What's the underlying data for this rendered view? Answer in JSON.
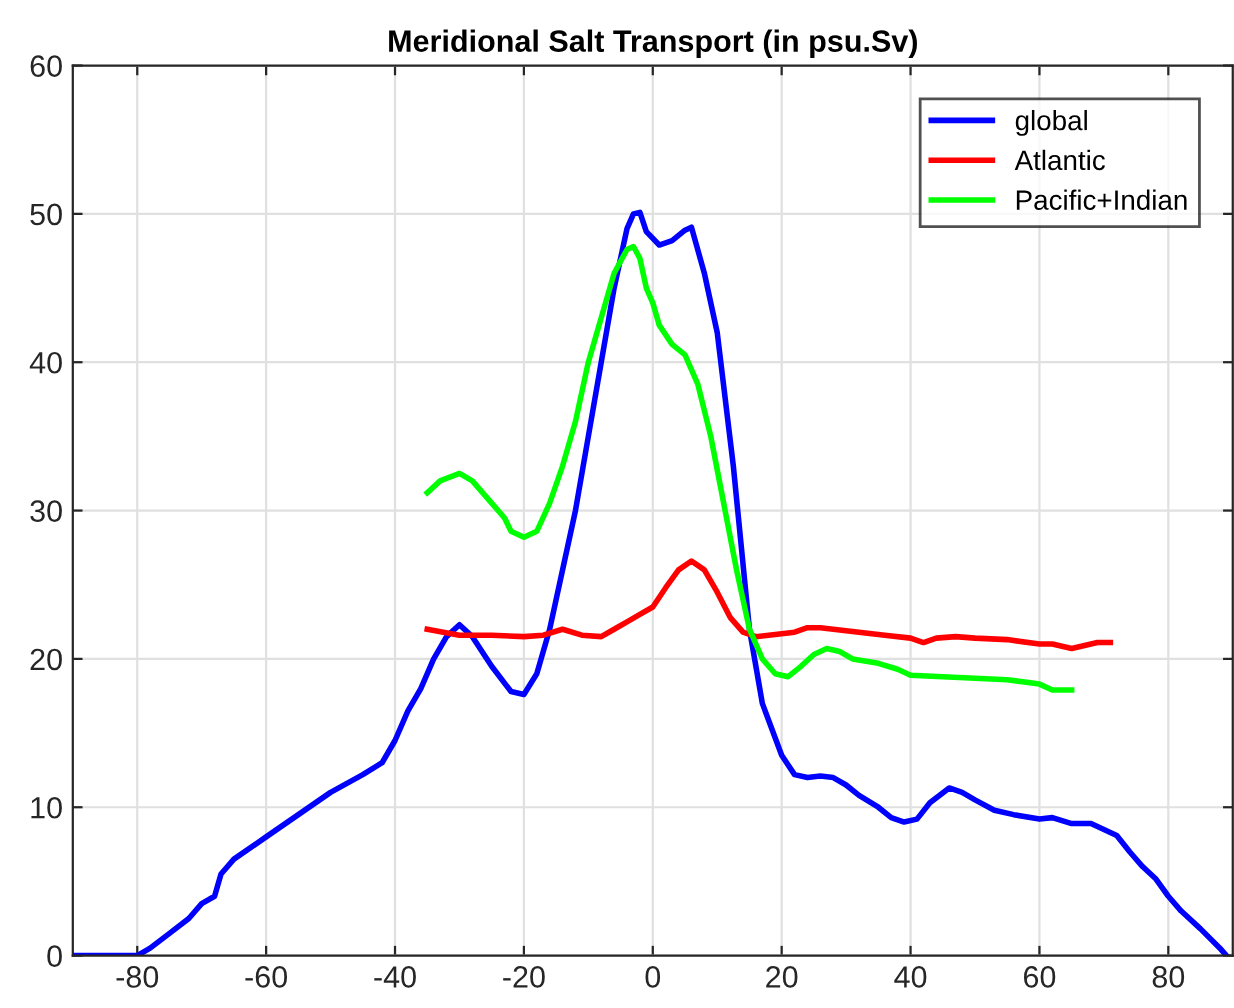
{
  "chart_data": {
    "type": "line",
    "title": "Meridional Salt Transport (in psu.Sv)",
    "xlim": [
      -90,
      90
    ],
    "ylim": [
      0,
      60
    ],
    "xticks": [
      -80,
      -60,
      -40,
      -20,
      0,
      20,
      40,
      60,
      80
    ],
    "yticks": [
      0,
      10,
      20,
      30,
      40,
      50,
      60
    ],
    "grid": true,
    "legend": "top right",
    "line_style": "solid",
    "marker": "none",
    "series": [
      {
        "name": "global",
        "color": "#0000ff",
        "x": [
          -90,
          -80,
          -78,
          -75,
          -72,
          -70,
          -68,
          -67,
          -65,
          -60,
          -55,
          -50,
          -45,
          -42,
          -40,
          -38,
          -36,
          -34,
          -32,
          -30,
          -28,
          -25,
          -22,
          -20,
          -18,
          -16,
          -14,
          -12,
          -10,
          -8,
          -6,
          -4,
          -3,
          -2,
          -1,
          1,
          3,
          5,
          6,
          8,
          10,
          12.5,
          15,
          17,
          20,
          22,
          24,
          26,
          28,
          30,
          32,
          35,
          37,
          39,
          41,
          43,
          46,
          48,
          50,
          53,
          56,
          60,
          62,
          65,
          68,
          70,
          72,
          74,
          76,
          78,
          80,
          82,
          85,
          88,
          89
        ],
        "values": [
          0,
          0,
          0.5,
          1.5,
          2.5,
          3.5,
          4,
          5.5,
          6.5,
          8,
          9.5,
          11,
          12.2,
          13,
          14.5,
          16.5,
          18,
          20,
          21.5,
          22.3,
          21.5,
          19.5,
          17.8,
          17.6,
          19,
          22,
          26,
          30,
          35,
          40,
          45,
          49,
          50,
          50.1,
          48.8,
          47.9,
          48.2,
          48.9,
          49.1,
          46,
          42,
          33,
          22,
          17,
          13.5,
          12.2,
          12,
          12.1,
          12,
          11.5,
          10.8,
          10,
          9.3,
          9,
          9.2,
          10.3,
          11.3,
          11,
          10.5,
          9.8,
          9.5,
          9.2,
          9.3,
          8.9,
          8.9,
          8.5,
          8.1,
          7,
          6,
          5.2,
          4,
          3,
          1.8,
          0.5,
          0
        ]
      },
      {
        "name": "Atlantic",
        "color": "#ff0000",
        "x": [
          -35,
          -30,
          -25,
          -20,
          -17,
          -14,
          -11,
          -8,
          -6,
          -4,
          -2,
          0,
          2,
          4,
          6,
          8,
          10,
          12,
          14,
          16,
          18,
          20,
          22,
          24,
          26,
          28,
          32,
          36,
          40,
          42,
          44,
          47,
          50,
          55,
          60,
          62,
          65,
          67,
          69,
          71
        ],
        "values": [
          22,
          21.6,
          21.6,
          21.5,
          21.6,
          22,
          21.6,
          21.5,
          22,
          22.5,
          23,
          23.5,
          24.8,
          26,
          26.6,
          26,
          24.5,
          22.8,
          21.8,
          21.5,
          21.6,
          21.7,
          21.8,
          22.1,
          22.1,
          22,
          21.8,
          21.6,
          21.4,
          21.1,
          21.4,
          21.5,
          21.4,
          21.3,
          21,
          21,
          20.7,
          20.9,
          21.1,
          21.1
        ]
      },
      {
        "name": "Pacific+Indian",
        "color": "#00ff00",
        "x": [
          -35,
          -33,
          -30,
          -28,
          -25,
          -23,
          -22,
          -20,
          -18,
          -16,
          -14,
          -12,
          -10,
          -8,
          -6,
          -4,
          -3,
          -2,
          -1,
          0,
          1,
          3,
          5,
          7,
          9,
          11,
          13,
          15,
          17,
          19,
          21,
          23,
          25,
          27,
          29,
          31,
          35,
          38,
          40,
          45,
          50,
          55,
          60,
          62,
          65
        ],
        "values": [
          31.2,
          32,
          32.5,
          32,
          30.5,
          29.5,
          28.6,
          28.2,
          28.6,
          30.5,
          33,
          36,
          40,
          43,
          46,
          47.6,
          47.8,
          47,
          45,
          44,
          42.5,
          41.2,
          40.5,
          38.5,
          35,
          30.5,
          26,
          22,
          20,
          19,
          18.8,
          19.5,
          20.3,
          20.7,
          20.5,
          20,
          19.7,
          19.3,
          18.9,
          18.8,
          18.7,
          18.6,
          18.3,
          17.9,
          17.9
        ]
      }
    ]
  }
}
